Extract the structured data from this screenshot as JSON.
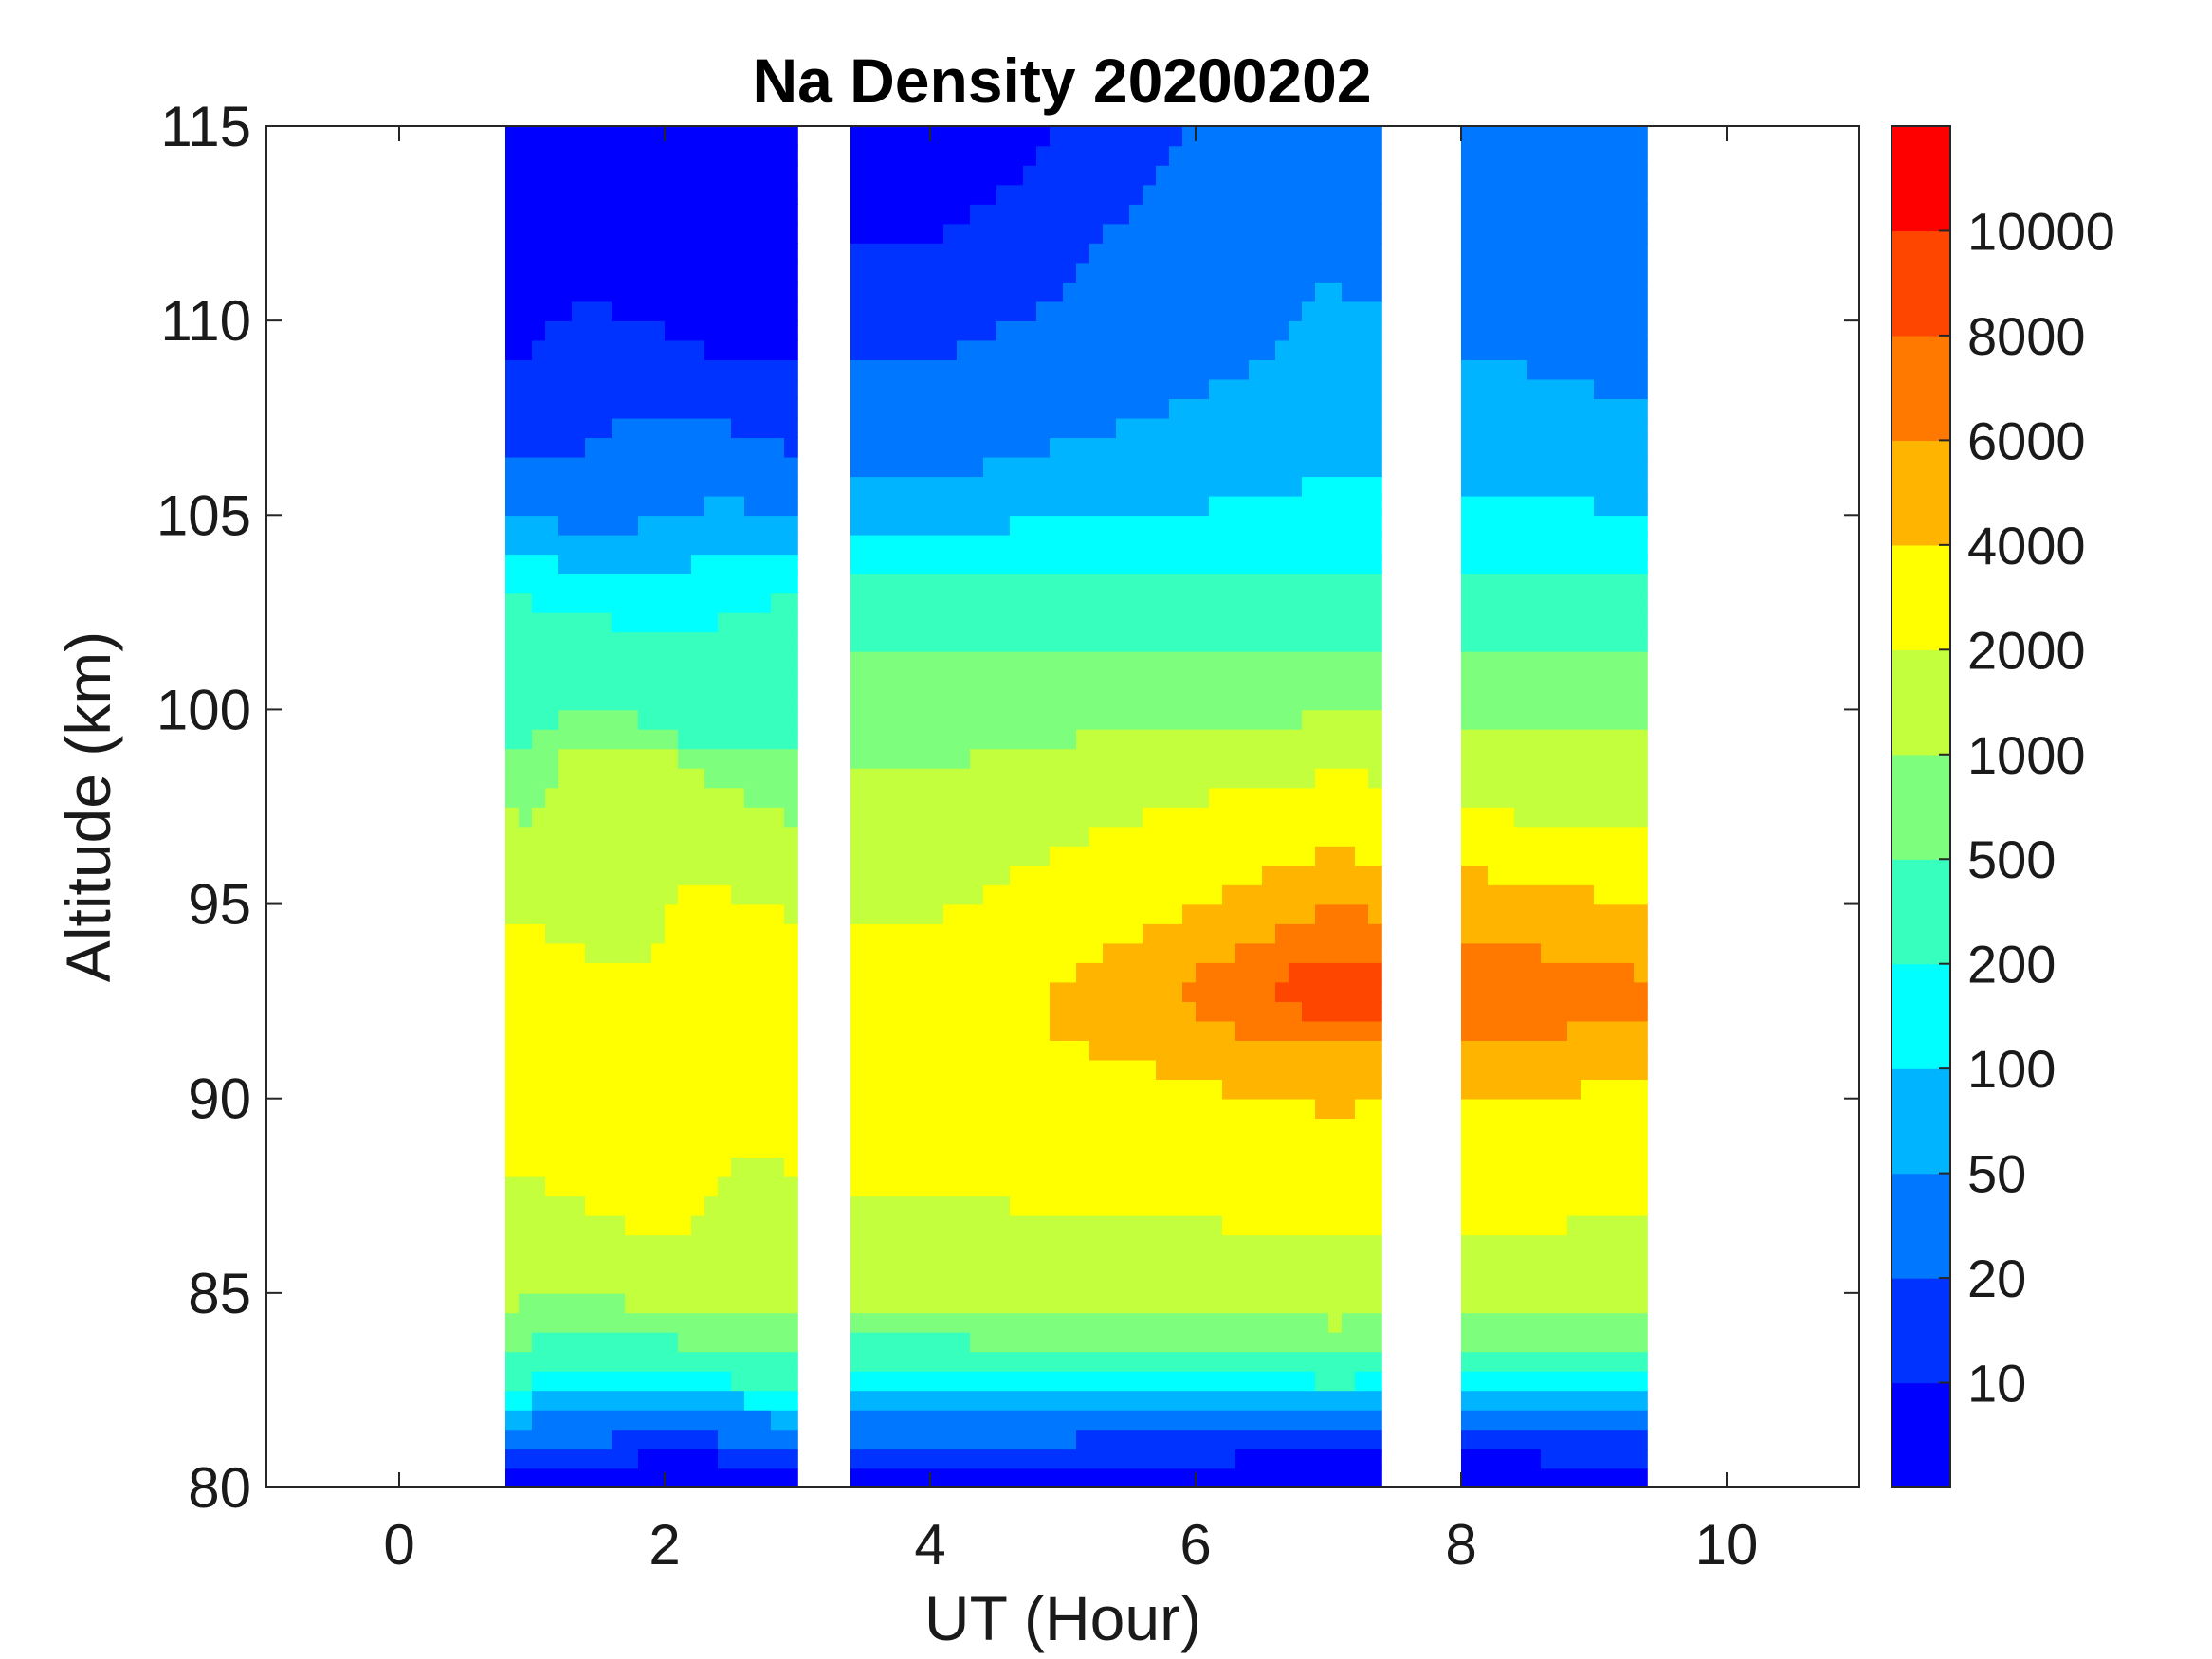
{
  "chart_data": {
    "type": "heatmap",
    "subtype": "filled-contour",
    "title": "Na Density 20200202",
    "xlabel": "UT (Hour)",
    "ylabel": "Altitude (km)",
    "xlim": [
      -1,
      11
    ],
    "ylim": [
      80,
      115
    ],
    "x_ticks": [
      0,
      2,
      4,
      6,
      8,
      10
    ],
    "x_tick_labels": [
      "0",
      "2",
      "4",
      "6",
      "8",
      "10"
    ],
    "y_ticks": [
      80,
      85,
      90,
      95,
      100,
      105,
      110,
      115
    ],
    "y_tick_labels": [
      "80",
      "85",
      "90",
      "95",
      "100",
      "105",
      "110",
      "115"
    ],
    "colorbar": {
      "levels": [
        0,
        10,
        20,
        50,
        100,
        200,
        500,
        1000,
        2000,
        4000,
        6000,
        8000,
        10000,
        12000
      ],
      "colors": [
        "#0000ff",
        "#0033ff",
        "#0077ff",
        "#00b4ff",
        "#00ffff",
        "#37ffbe",
        "#7dff7d",
        "#c3ff3c",
        "#ffff00",
        "#ffb400",
        "#ff7800",
        "#ff4600",
        "#ff0000"
      ],
      "tick_labels": [
        "10",
        "20",
        "50",
        "100",
        "200",
        "500",
        "1000",
        "2000",
        "4000",
        "6000",
        "8000",
        "10000"
      ]
    },
    "data_segments": [
      {
        "x_start": 0.8,
        "x_end": 3.0,
        "alt_min": 80,
        "alt_max": 115
      },
      {
        "x_start": 3.4,
        "x_end": 7.4,
        "alt_min": 80,
        "alt_max": 115
      },
      {
        "x_start": 8.0,
        "x_end": 9.4,
        "alt_min": 80,
        "alt_max": 115
      }
    ],
    "data_gaps_hours": [
      [
        3.0,
        3.4
      ],
      [
        7.4,
        8.0
      ]
    ],
    "profile": {
      "altitude_km": [
        80,
        81,
        82,
        83,
        84,
        85,
        86,
        87,
        88,
        89,
        90,
        91,
        92,
        93,
        94,
        95,
        96,
        97,
        98,
        99,
        100,
        101,
        102,
        103,
        104,
        105,
        106,
        107,
        108,
        109,
        110,
        111,
        112,
        113,
        114,
        115
      ],
      "density_at_4UT": [
        5,
        15,
        60,
        250,
        600,
        1300,
        1600,
        1800,
        2300,
        2800,
        3000,
        3100,
        3000,
        2700,
        2200,
        1800,
        1500,
        1300,
        1100,
        900,
        700,
        550,
        400,
        250,
        150,
        80,
        50,
        35,
        25,
        20,
        15,
        12,
        10,
        8,
        6,
        5
      ],
      "density_at_7UT": [
        5,
        12,
        60,
        300,
        900,
        1400,
        1800,
        2200,
        2900,
        3600,
        4200,
        5200,
        8500,
        9500,
        7500,
        6000,
        4500,
        3200,
        2300,
        1500,
        900,
        600,
        400,
        250,
        160,
        120,
        100,
        90,
        70,
        60,
        55,
        50,
        50,
        50,
        45,
        40
      ],
      "peak_density": 9500,
      "peak_altitude_km": 93,
      "peak_time_UT": 7.0
    }
  }
}
